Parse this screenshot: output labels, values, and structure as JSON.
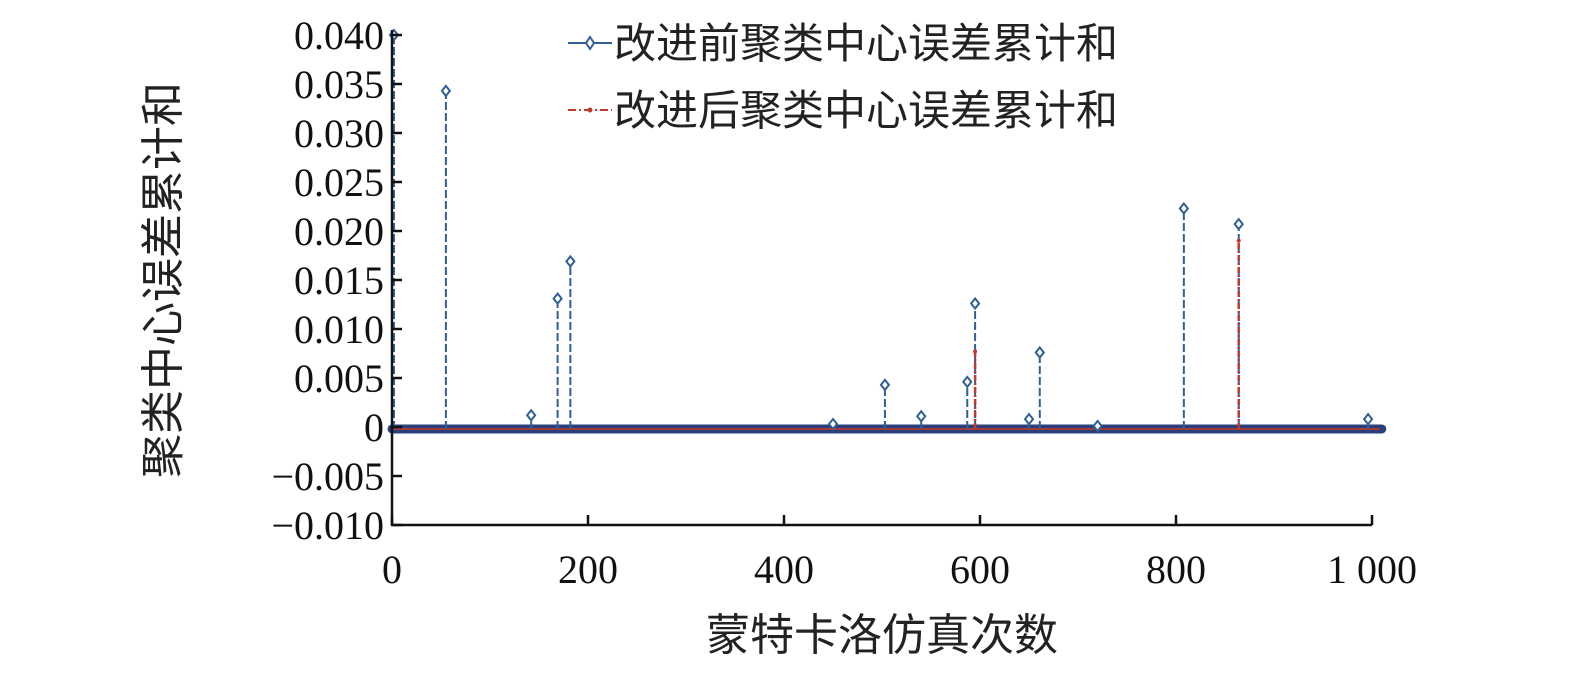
{
  "chart_data": {
    "type": "line",
    "title": "",
    "xlabel": "蒙特卡洛仿真次数",
    "ylabel": "聚类中心误差累计和",
    "xlim": [
      0,
      1000
    ],
    "ylim": [
      -0.01,
      0.04
    ],
    "x_ticks": [
      0,
      200,
      400,
      600,
      800,
      1000
    ],
    "x_tick_labels": [
      "0",
      "200",
      "400",
      "600",
      "800",
      "1 000"
    ],
    "y_ticks": [
      0.04,
      0.035,
      0.03,
      0.025,
      0.02,
      0.015,
      0.01,
      0.005,
      0,
      -0.005,
      -0.01
    ],
    "y_tick_labels": [
      "0.040",
      "0.035",
      "0.030",
      "0.025",
      "0.020",
      "0.015",
      "0.010",
      "0.005",
      "0",
      "−0.005",
      "−0.010"
    ],
    "grid": false,
    "legend_position": "top-center",
    "baseline_value": -0.0002,
    "series": [
      {
        "name": "改进前聚类中心误差累计和",
        "color": "#2f5f95",
        "marker": "diamond",
        "line_style": "dashed",
        "spikes": [
          {
            "x": 2,
            "y": 0.04
          },
          {
            "x": 55,
            "y": 0.0343
          },
          {
            "x": 142,
            "y": 0.0012
          },
          {
            "x": 169,
            "y": 0.0131
          },
          {
            "x": 182,
            "y": 0.0169
          },
          {
            "x": 450,
            "y": 0.0003
          },
          {
            "x": 503,
            "y": 0.0043
          },
          {
            "x": 540,
            "y": 0.0011
          },
          {
            "x": 587,
            "y": 0.0046
          },
          {
            "x": 595,
            "y": 0.0126
          },
          {
            "x": 650,
            "y": 0.0008
          },
          {
            "x": 661,
            "y": 0.0076
          },
          {
            "x": 720,
            "y": 0.0001
          },
          {
            "x": 808,
            "y": 0.0223
          },
          {
            "x": 864,
            "y": 0.0207
          },
          {
            "x": 996,
            "y": 0.0008
          }
        ]
      },
      {
        "name": "改进后聚类中心误差累计和",
        "color": "#c0392b",
        "marker": "dot",
        "line_style": "dash-dot",
        "spikes": [
          {
            "x": 595,
            "y": 0.0077
          },
          {
            "x": 864,
            "y": 0.019
          }
        ]
      }
    ]
  }
}
